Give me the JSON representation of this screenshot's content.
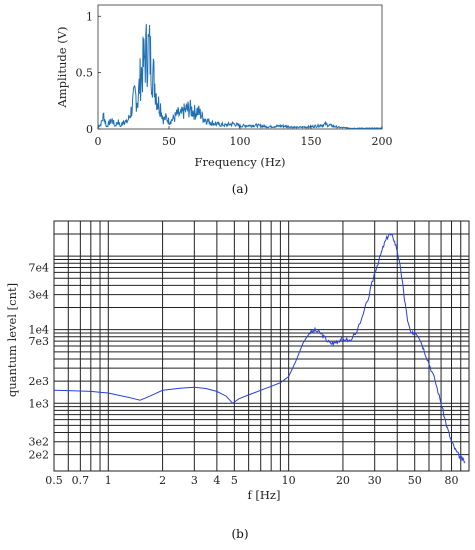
{
  "captions": {
    "a": "(a)",
    "b": "(b)"
  },
  "chart_data": [
    {
      "type": "line",
      "xlabel": "Frequency (Hz)",
      "ylabel": "Amplitude (V)",
      "xlim": [
        0,
        200
      ],
      "ylim": [
        0,
        1.1
      ],
      "x_ticks": [
        "0",
        "50",
        "100",
        "150",
        "200"
      ],
      "y_ticks": [
        "0",
        "0.5",
        "1"
      ],
      "grid": false,
      "color": "#1f6fb4",
      "series": [
        {
          "x": [
            0,
            2,
            4,
            6,
            8,
            10,
            12,
            14,
            16,
            18,
            20,
            22,
            24,
            26,
            28,
            30,
            32,
            34,
            36,
            38,
            40,
            42,
            44,
            46,
            48,
            50,
            52,
            54,
            56,
            58,
            60,
            62,
            64,
            66,
            68,
            70,
            72,
            74,
            76,
            78,
            80,
            85,
            90,
            95,
            100,
            110,
            120,
            130,
            140,
            150,
            160,
            170,
            180,
            190,
            200
          ],
          "y": [
            0.04,
            0.06,
            0.18,
            0.03,
            0.08,
            0.12,
            0.04,
            0.1,
            0.03,
            0.12,
            0.08,
            0.15,
            0.28,
            0.45,
            0.38,
            0.7,
            0.85,
            1.0,
            1.05,
            0.8,
            0.6,
            0.35,
            0.3,
            0.12,
            0.15,
            0.1,
            0.12,
            0.15,
            0.2,
            0.18,
            0.22,
            0.25,
            0.27,
            0.25,
            0.22,
            0.24,
            0.2,
            0.15,
            0.12,
            0.1,
            0.08,
            0.06,
            0.05,
            0.07,
            0.04,
            0.05,
            0.03,
            0.04,
            0.02,
            0.03,
            0.06,
            0.02,
            0.01,
            0.01,
            0.01
          ]
        }
      ]
    },
    {
      "type": "line",
      "xlabel": "f [Hz]",
      "ylabel": "quantum level [cnt]",
      "x_scale": "log",
      "y_scale": "log",
      "xlim": [
        0.5,
        100
      ],
      "ylim": [
        120,
        300000
      ],
      "x_ticks": [
        {
          "v": 0.5,
          "label": "0.5"
        },
        {
          "v": 0.7,
          "label": "0.7"
        },
        {
          "v": 1,
          "label": "1"
        },
        {
          "v": 2,
          "label": "2"
        },
        {
          "v": 3,
          "label": "3"
        },
        {
          "v": 4,
          "label": "4"
        },
        {
          "v": 5,
          "label": "5"
        },
        {
          "v": 10,
          "label": "10"
        },
        {
          "v": 20,
          "label": "20"
        },
        {
          "v": 30,
          "label": "30"
        },
        {
          "v": 50,
          "label": "50"
        },
        {
          "v": 80,
          "label": "80"
        }
      ],
      "y_ticks": [
        {
          "v": 200,
          "label": "2e2"
        },
        {
          "v": 300,
          "label": "3e2"
        },
        {
          "v": 1000,
          "label": "1e3"
        },
        {
          "v": 2000,
          "label": "2e3"
        },
        {
          "v": 7000,
          "label": "7e3"
        },
        {
          "v": 10000,
          "label": "1e4"
        },
        {
          "v": 30000,
          "label": "3e4"
        },
        {
          "v": 70000,
          "label": "7e4"
        }
      ],
      "grid": true,
      "color": "#2a3fe0",
      "series": [
        {
          "x": [
            0.5,
            0.8,
            1.0,
            1.3,
            1.5,
            1.7,
            2.0,
            2.5,
            3.0,
            3.5,
            4.0,
            4.5,
            4.9,
            5.3,
            6.0,
            7.0,
            8.0,
            9.0,
            10.0,
            11.0,
            12.0,
            13.0,
            14.0,
            15.0,
            16.0,
            17.0,
            18.0,
            19.0,
            20.0,
            22.0,
            25.0,
            28.0,
            30.0,
            32.0,
            34.0,
            36.0,
            38.0,
            40.0,
            42.0,
            44.0,
            46.0,
            48.0,
            50.0,
            53.0,
            56.0,
            60.0,
            65.0,
            70.0,
            75.0,
            80.0,
            85.0,
            90.0,
            95.0
          ],
          "y": [
            1500,
            1450,
            1380,
            1200,
            1100,
            1250,
            1500,
            1600,
            1650,
            1580,
            1450,
            1250,
            1000,
            1150,
            1300,
            1500,
            1700,
            1900,
            2300,
            3800,
            6500,
            9000,
            9800,
            9000,
            7500,
            6500,
            6600,
            7200,
            7600,
            7000,
            12000,
            30000,
            60000,
            95000,
            150000,
            200000,
            180000,
            120000,
            60000,
            25000,
            12000,
            8500,
            9500,
            8000,
            5500,
            3500,
            2000,
            1000,
            500,
            300,
            220,
            180,
            160
          ]
        }
      ]
    }
  ]
}
